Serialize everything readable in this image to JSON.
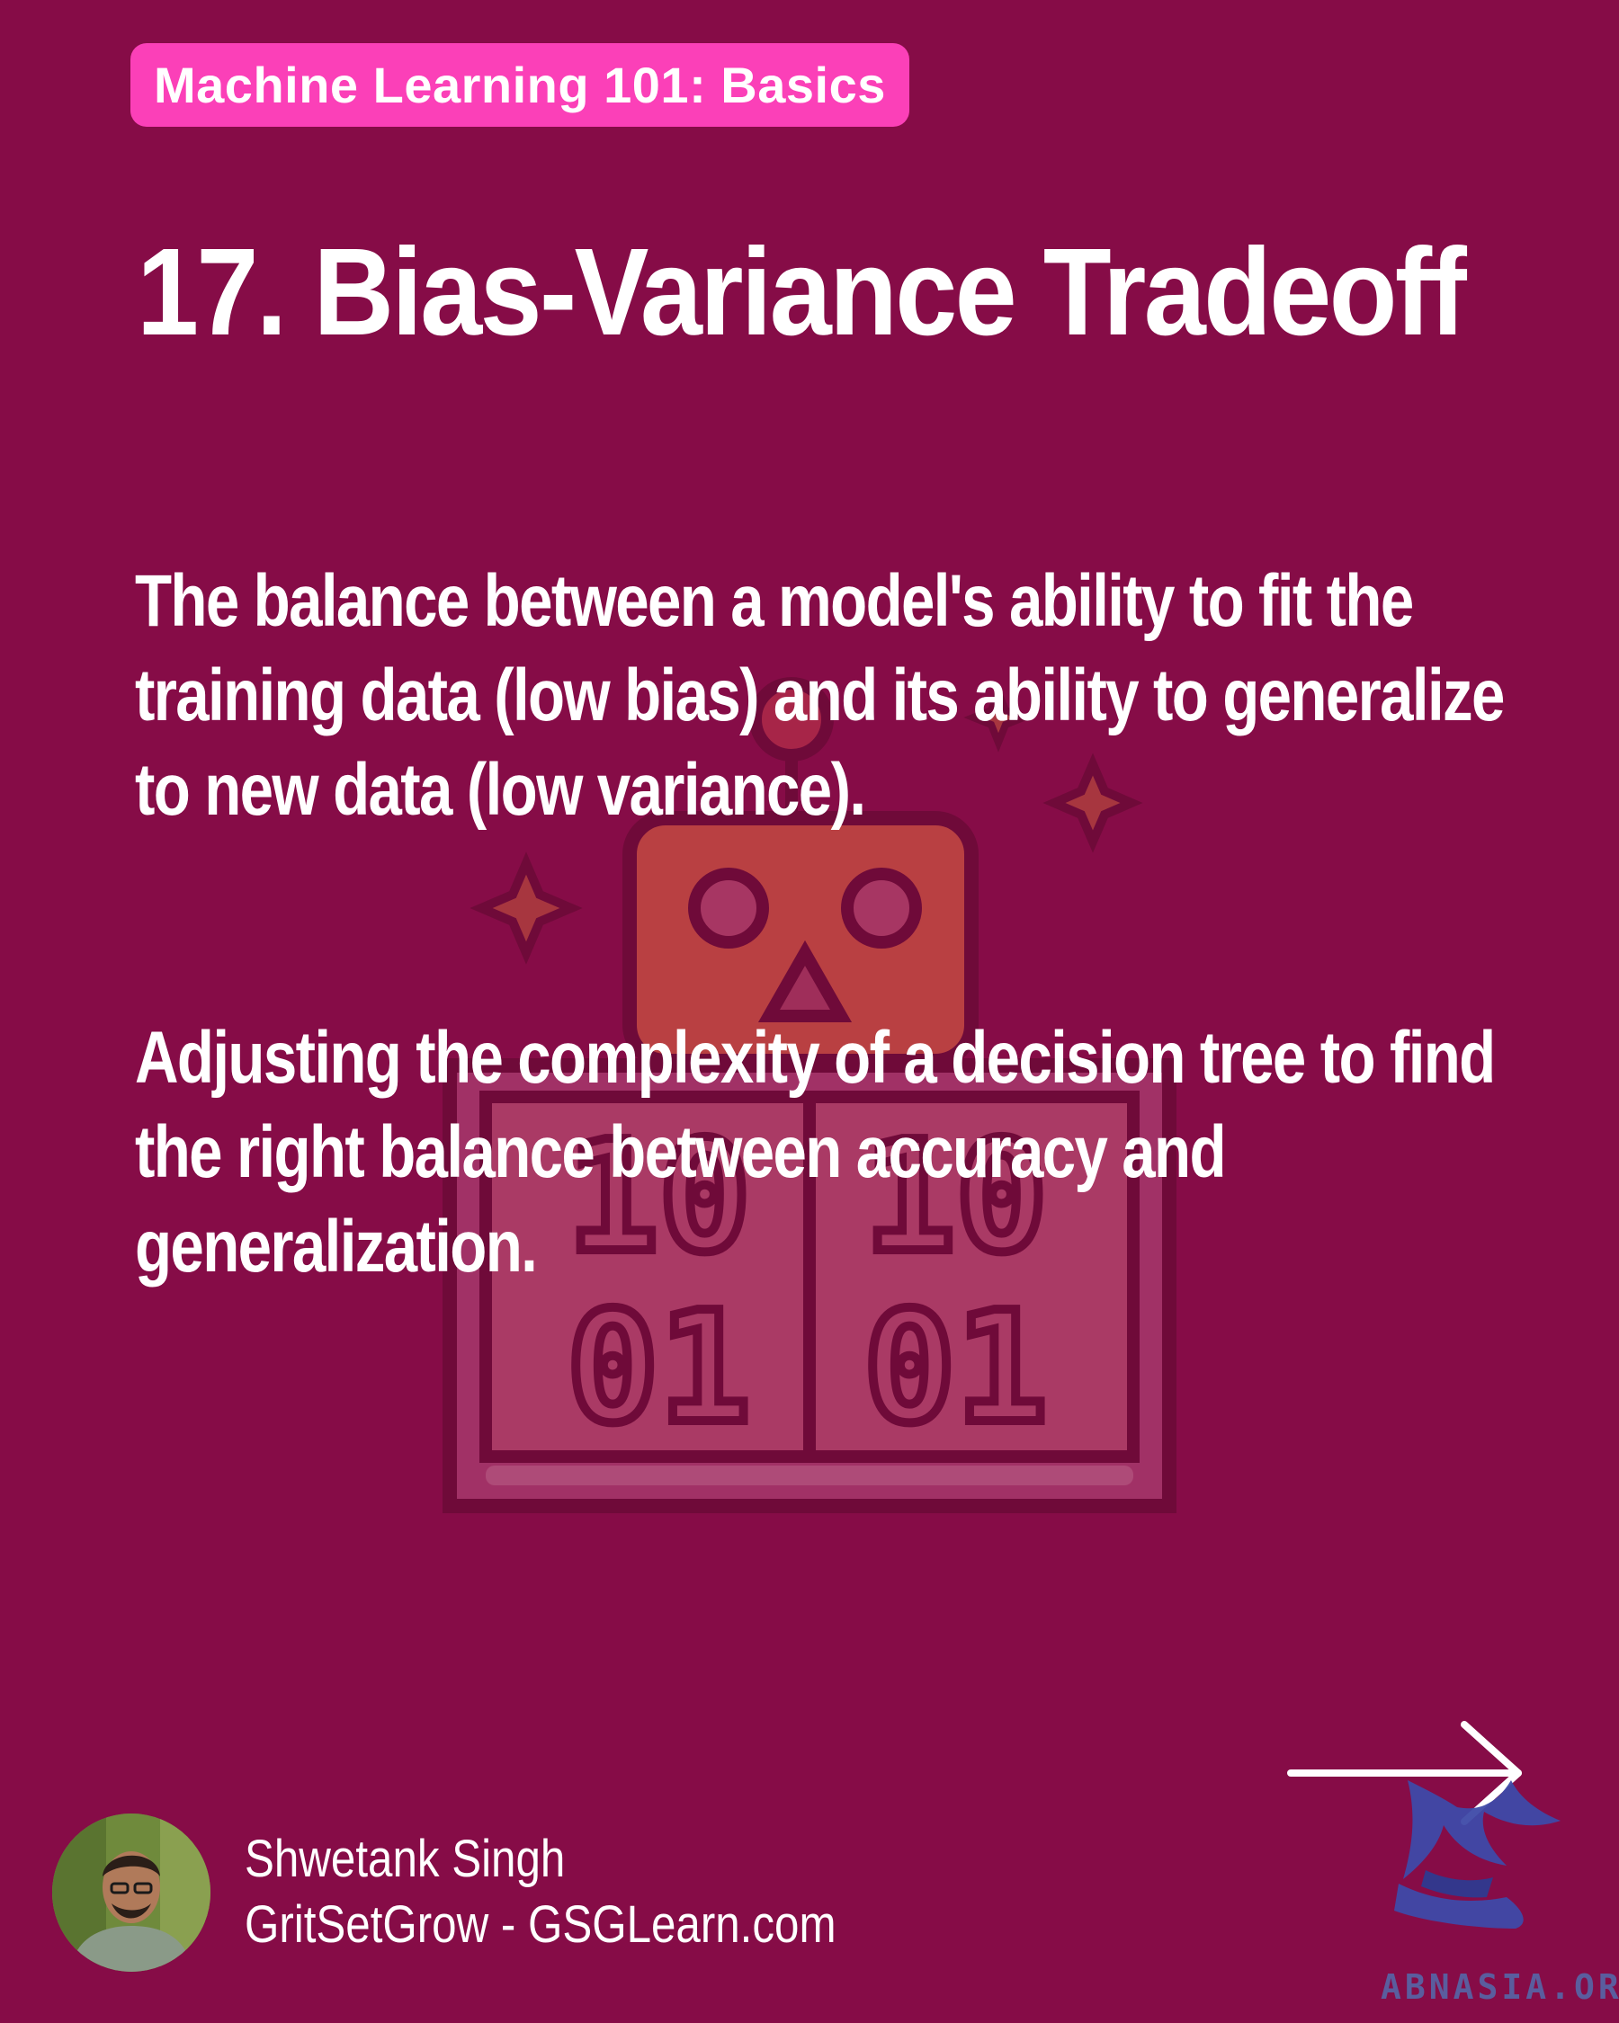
{
  "header": {
    "series_tag": "Machine Learning 101: Basics",
    "title": "17. Bias-Variance Tradeoff"
  },
  "content": {
    "definition": "The balance between a model's ability to fit the training data (low bias) and its ability to generalize to new data (low variance).",
    "example": "Adjusting the complexity of a decision tree to find the right balance between accuracy and generalization."
  },
  "illustration": {
    "icon": "robot-binary-screen-icon",
    "binary_top_left": "10",
    "binary_top_right": "10",
    "binary_bottom_left": "01",
    "binary_bottom_right": "01"
  },
  "navigation": {
    "next_icon": "arrow-right-icon"
  },
  "author": {
    "name": "Shwetank Singh",
    "site": "GritSetGrow - GSGLearn.com",
    "avatar_icon": "avatar-photo"
  },
  "watermark": {
    "text": "ABNASIA.ORG",
    "logo_icon": "griffin-logo-icon"
  },
  "colors": {
    "background": "#860c47",
    "tag_background": "#fb40b8",
    "text": "#ffffff"
  }
}
